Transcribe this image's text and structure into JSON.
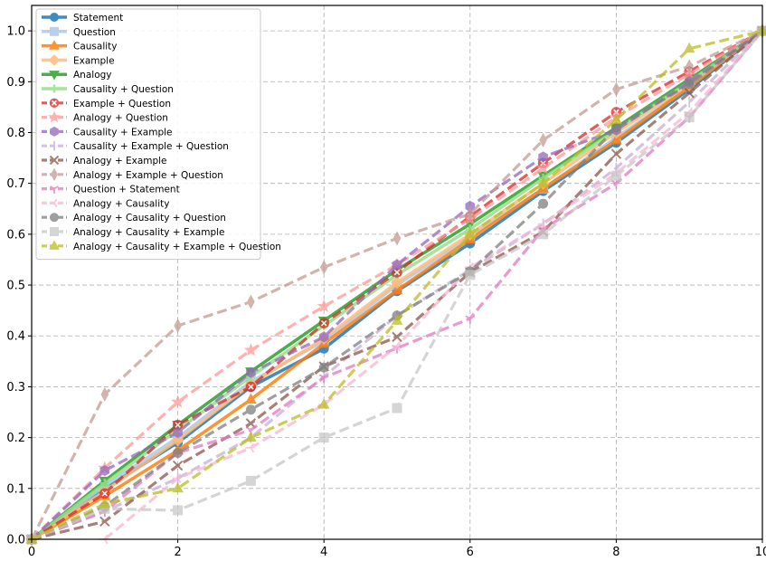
{
  "chart_data": {
    "type": "line",
    "title": "",
    "xlabel": "",
    "ylabel": "",
    "xlim": [
      0,
      10
    ],
    "ylim": [
      0,
      1.05
    ],
    "xticks": [
      0,
      2,
      4,
      6,
      8,
      10
    ],
    "yticks": [
      0.0,
      0.1,
      0.2,
      0.3,
      0.4,
      0.5,
      0.6,
      0.7,
      0.8,
      0.9,
      1.0
    ],
    "xtick_labels": [
      "0",
      "2",
      "4",
      "6",
      "8",
      "10"
    ],
    "ytick_labels": [
      "0.0",
      "0.1",
      "0.2",
      "0.3",
      "0.4",
      "0.5",
      "0.6",
      "0.7",
      "0.8",
      "0.9",
      "1.0"
    ],
    "grid": true,
    "legend_position": "top-left",
    "x": [
      0,
      1,
      2,
      3,
      4,
      5,
      6,
      7,
      8,
      9,
      10
    ],
    "series": [
      {
        "name": "Statement",
        "color": "#1f77b4",
        "dash": "solid",
        "marker": "circle",
        "width": 3.5,
        "alpha": 0.85,
        "values": [
          0.0,
          0.1,
          0.19,
          0.3,
          0.375,
          0.488,
          0.582,
          0.685,
          0.78,
          0.885,
          1.0
        ]
      },
      {
        "name": "Question",
        "color": "#aec7e8",
        "dash": "solid",
        "marker": "square",
        "width": 3.5,
        "alpha": 0.85,
        "values": [
          0.0,
          0.105,
          0.2,
          0.31,
          0.39,
          0.5,
          0.595,
          0.69,
          0.79,
          0.89,
          1.0
        ]
      },
      {
        "name": "Causality",
        "color": "#ff7f0e",
        "dash": "solid",
        "marker": "triangle-up",
        "width": 3.5,
        "alpha": 0.85,
        "values": [
          0.0,
          0.085,
          0.175,
          0.275,
          0.385,
          0.49,
          0.59,
          0.69,
          0.785,
          0.89,
          1.0
        ]
      },
      {
        "name": "Example",
        "color": "#ffbb78",
        "dash": "solid",
        "marker": "diamond",
        "width": 3.5,
        "alpha": 0.85,
        "values": [
          0.0,
          0.095,
          0.195,
          0.305,
          0.395,
          0.505,
          0.6,
          0.7,
          0.8,
          0.895,
          1.0
        ]
      },
      {
        "name": "Analogy",
        "color": "#2ca02c",
        "dash": "solid",
        "marker": "triangle-down",
        "width": 3.5,
        "alpha": 0.85,
        "values": [
          0.0,
          0.115,
          0.225,
          0.33,
          0.43,
          0.53,
          0.62,
          0.715,
          0.81,
          0.905,
          1.0
        ]
      },
      {
        "name": "Causality + Question",
        "color": "#98df8a",
        "dash": "solid",
        "marker": "plus",
        "width": 3.5,
        "alpha": 0.85,
        "values": [
          0.0,
          0.11,
          0.215,
          0.32,
          0.42,
          0.52,
          0.61,
          0.71,
          0.805,
          0.9,
          1.0
        ]
      },
      {
        "name": "Example + Question",
        "color": "#d62728",
        "dash": "dashed",
        "marker": "x-circle",
        "width": 3.2,
        "alpha": 0.75,
        "values": [
          0.0,
          0.09,
          0.225,
          0.3,
          0.425,
          0.525,
          0.635,
          0.74,
          0.84,
          0.92,
          1.0
        ]
      },
      {
        "name": "Analogy + Question",
        "color": "#ff9896",
        "dash": "dashed",
        "marker": "star",
        "width": 3.2,
        "alpha": 0.75,
        "values": [
          0.0,
          0.14,
          0.27,
          0.372,
          0.458,
          0.54,
          0.63,
          0.73,
          0.83,
          0.915,
          1.0
        ]
      },
      {
        "name": "Causality + Example",
        "color": "#9467bd",
        "dash": "dashed",
        "marker": "hexagon",
        "width": 3.2,
        "alpha": 0.75,
        "values": [
          0.0,
          0.135,
          0.21,
          0.328,
          0.398,
          0.54,
          0.655,
          0.752,
          0.805,
          0.9,
          1.0
        ]
      },
      {
        "name": "Causality + Example + Question",
        "color": "#c5b0d5",
        "dash": "dashed",
        "marker": "vline",
        "width": 3.2,
        "alpha": 0.75,
        "values": [
          0.0,
          0.055,
          0.12,
          0.2,
          0.32,
          0.44,
          0.53,
          0.62,
          0.73,
          0.86,
          1.0
        ]
      },
      {
        "name": "Analogy + Example",
        "color": "#8c564b",
        "dash": "dashed",
        "marker": "x",
        "width": 3.2,
        "alpha": 0.75,
        "values": [
          0.0,
          0.035,
          0.145,
          0.228,
          0.34,
          0.398,
          0.525,
          0.605,
          0.758,
          0.878,
          1.0
        ]
      },
      {
        "name": "Analogy + Example + Question",
        "color": "#c49c94",
        "dash": "dashed",
        "marker": "thin-diamond",
        "width": 3.2,
        "alpha": 0.75,
        "values": [
          0.0,
          0.285,
          0.42,
          0.467,
          0.535,
          0.592,
          0.64,
          0.785,
          0.885,
          0.93,
          1.0
        ]
      },
      {
        "name": "Question + Statement",
        "color": "#e377c2",
        "dash": "dashed",
        "marker": "tri-down",
        "width": 3.2,
        "alpha": 0.75,
        "values": [
          0.0,
          0.055,
          0.17,
          0.215,
          0.318,
          0.376,
          0.434,
          0.61,
          0.7,
          0.83,
          1.0
        ]
      },
      {
        "name": "Analogy + Causality",
        "color": "#f7b6d2",
        "dash": "dashed",
        "marker": "tri-left",
        "width": 3.2,
        "alpha": 0.75,
        "values": [
          null,
          0.0,
          0.12,
          0.18,
          0.265,
          0.38,
          0.535,
          0.62,
          0.72,
          0.84,
          1.0
        ]
      },
      {
        "name": "Analogy + Causality + Question",
        "color": "#7f7f7f",
        "dash": "dashed",
        "marker": "circle",
        "width": 3.2,
        "alpha": 0.75,
        "values": [
          0.0,
          0.065,
          0.17,
          0.255,
          0.338,
          0.44,
          0.527,
          0.66,
          0.81,
          0.895,
          1.0
        ]
      },
      {
        "name": "Analogy + Causality + Example",
        "color": "#c7c7c7",
        "dash": "dashed",
        "marker": "square",
        "width": 3.2,
        "alpha": 0.75,
        "values": [
          0.0,
          0.06,
          0.057,
          0.115,
          0.2,
          0.258,
          0.52,
          0.6,
          0.715,
          0.83,
          1.0
        ]
      },
      {
        "name": "Analogy + Causality + Example + Question",
        "color": "#bcbd22",
        "dash": "dashed",
        "marker": "triangle-up",
        "width": 3.2,
        "alpha": 0.75,
        "values": [
          0.0,
          0.07,
          0.1,
          0.2,
          0.265,
          0.43,
          0.6,
          0.7,
          0.825,
          0.965,
          1.0
        ]
      }
    ]
  }
}
